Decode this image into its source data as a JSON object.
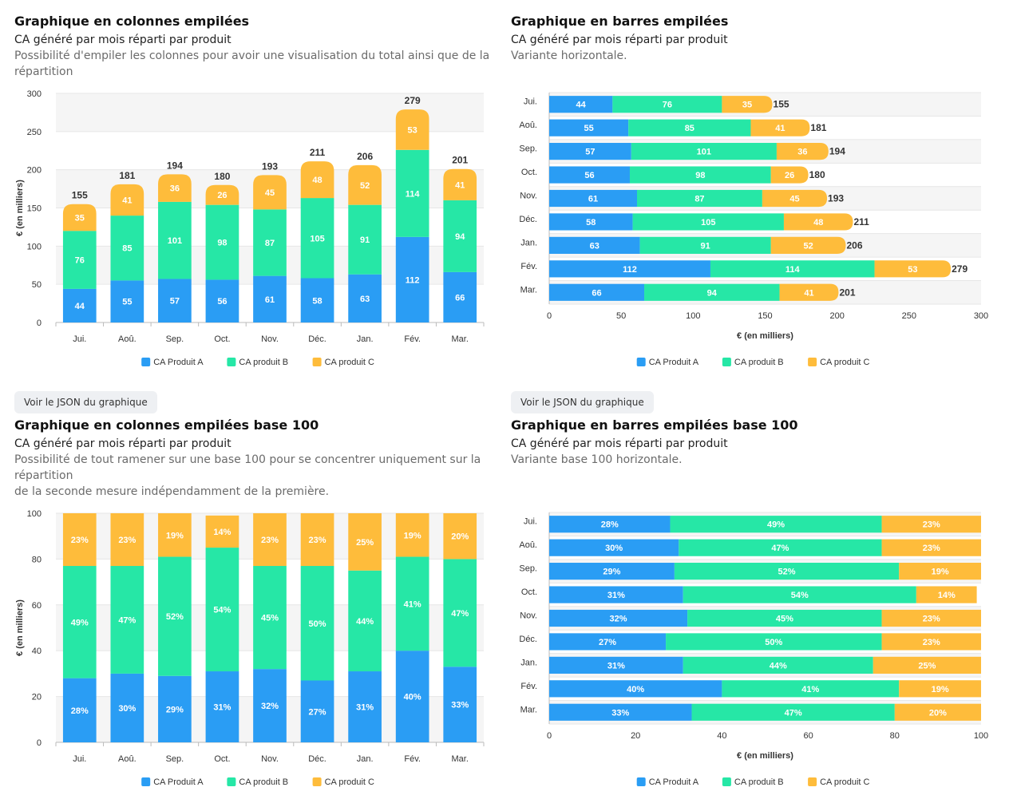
{
  "colors": {
    "a": "#2a9df4",
    "b": "#26e7a6",
    "c": "#febc3b",
    "zebra": "#f5f5f5"
  },
  "panels": [
    {
      "title": "Graphique en colonnes empilées",
      "subtitle": "CA généré par mois réparti par produit",
      "description": "Possibilité d'empiler les colonnes pour avoir une visualisation du total ainsi que de la répartition",
      "json_button": "Voir le JSON du graphique"
    },
    {
      "title": "Graphique en barres empilées",
      "subtitle": "CA généré par mois réparti par produit",
      "description": "Variante horizontale.",
      "json_button": "Voir le JSON du graphique"
    },
    {
      "title": "Graphique en colonnes empilées base 100",
      "subtitle": "CA généré par mois réparti par produit",
      "description_line1": "Possibilité de tout ramener sur une base 100 pour se concentrer uniquement sur la répartition",
      "description_line2": "de la seconde mesure indépendamment de la première."
    },
    {
      "title": "Graphique en barres empilées base 100",
      "subtitle": "CA généré par mois réparti par produit",
      "description": "Variante base 100 horizontale."
    }
  ],
  "chart_data": [
    {
      "type": "bar",
      "orientation": "vertical",
      "stacked": true,
      "categories": [
        "Jui.",
        "Aoû.",
        "Sep.",
        "Oct.",
        "Nov.",
        "Déc.",
        "Jan.",
        "Fév.",
        "Mar."
      ],
      "series": [
        {
          "name": "CA Produit A",
          "values": [
            44,
            55,
            57,
            56,
            61,
            58,
            63,
            112,
            66
          ]
        },
        {
          "name": "CA produit B",
          "values": [
            76,
            85,
            101,
            98,
            87,
            105,
            91,
            114,
            94
          ]
        },
        {
          "name": "CA produit C",
          "values": [
            35,
            41,
            36,
            26,
            45,
            48,
            52,
            53,
            41
          ]
        }
      ],
      "totals": [
        155,
        181,
        194,
        180,
        193,
        211,
        206,
        279,
        201
      ],
      "ylabel": "€ (en milliers)",
      "ylim": [
        0,
        300
      ],
      "yticks": [
        0,
        50,
        100,
        150,
        200,
        250,
        300
      ],
      "legend": "bottom-center"
    },
    {
      "type": "bar",
      "orientation": "horizontal",
      "stacked": true,
      "categories": [
        "Jui.",
        "Aoû.",
        "Sep.",
        "Oct.",
        "Nov.",
        "Déc.",
        "Jan.",
        "Fév.",
        "Mar."
      ],
      "series": [
        {
          "name": "CA Produit A",
          "values": [
            44,
            55,
            57,
            56,
            61,
            58,
            63,
            112,
            66
          ]
        },
        {
          "name": "CA produit B",
          "values": [
            76,
            85,
            101,
            98,
            87,
            105,
            91,
            114,
            94
          ]
        },
        {
          "name": "CA produit C",
          "values": [
            35,
            41,
            36,
            26,
            45,
            48,
            52,
            53,
            41
          ]
        }
      ],
      "totals": [
        155,
        181,
        194,
        180,
        193,
        211,
        206,
        279,
        201
      ],
      "xlabel": "€ (en milliers)",
      "xlim": [
        0,
        300
      ],
      "xticks": [
        0,
        50,
        100,
        150,
        200,
        250,
        300
      ],
      "legend": "bottom-center"
    },
    {
      "type": "bar",
      "orientation": "vertical",
      "stacked": true,
      "percent": true,
      "categories": [
        "Jui.",
        "Aoû.",
        "Sep.",
        "Oct.",
        "Nov.",
        "Déc.",
        "Jan.",
        "Fév.",
        "Mar."
      ],
      "series": [
        {
          "name": "CA Produit A",
          "values": [
            28,
            30,
            29,
            31,
            32,
            27,
            31,
            40,
            33
          ]
        },
        {
          "name": "CA produit B",
          "values": [
            49,
            47,
            52,
            54,
            45,
            50,
            44,
            41,
            47
          ]
        },
        {
          "name": "CA produit C",
          "values": [
            23,
            23,
            19,
            14,
            23,
            23,
            25,
            19,
            20
          ]
        }
      ],
      "ylabel": "€ (en milliers)",
      "ylim": [
        0,
        100
      ],
      "yticks": [
        0,
        20,
        40,
        60,
        80,
        100
      ],
      "legend": "bottom-center"
    },
    {
      "type": "bar",
      "orientation": "horizontal",
      "stacked": true,
      "percent": true,
      "categories": [
        "Jui.",
        "Aoû.",
        "Sep.",
        "Oct.",
        "Nov.",
        "Déc.",
        "Jan.",
        "Fév.",
        "Mar."
      ],
      "series": [
        {
          "name": "CA Produit A",
          "values": [
            28,
            30,
            29,
            31,
            32,
            27,
            31,
            40,
            33
          ]
        },
        {
          "name": "CA produit B",
          "values": [
            49,
            47,
            52,
            54,
            45,
            50,
            44,
            41,
            47
          ]
        },
        {
          "name": "CA produit C",
          "values": [
            23,
            23,
            19,
            14,
            23,
            23,
            25,
            19,
            20
          ]
        }
      ],
      "xlabel": "€ (en milliers)",
      "xlim": [
        0,
        100
      ],
      "xticks": [
        0,
        20,
        40,
        60,
        80,
        100
      ],
      "legend": "bottom-center"
    }
  ]
}
